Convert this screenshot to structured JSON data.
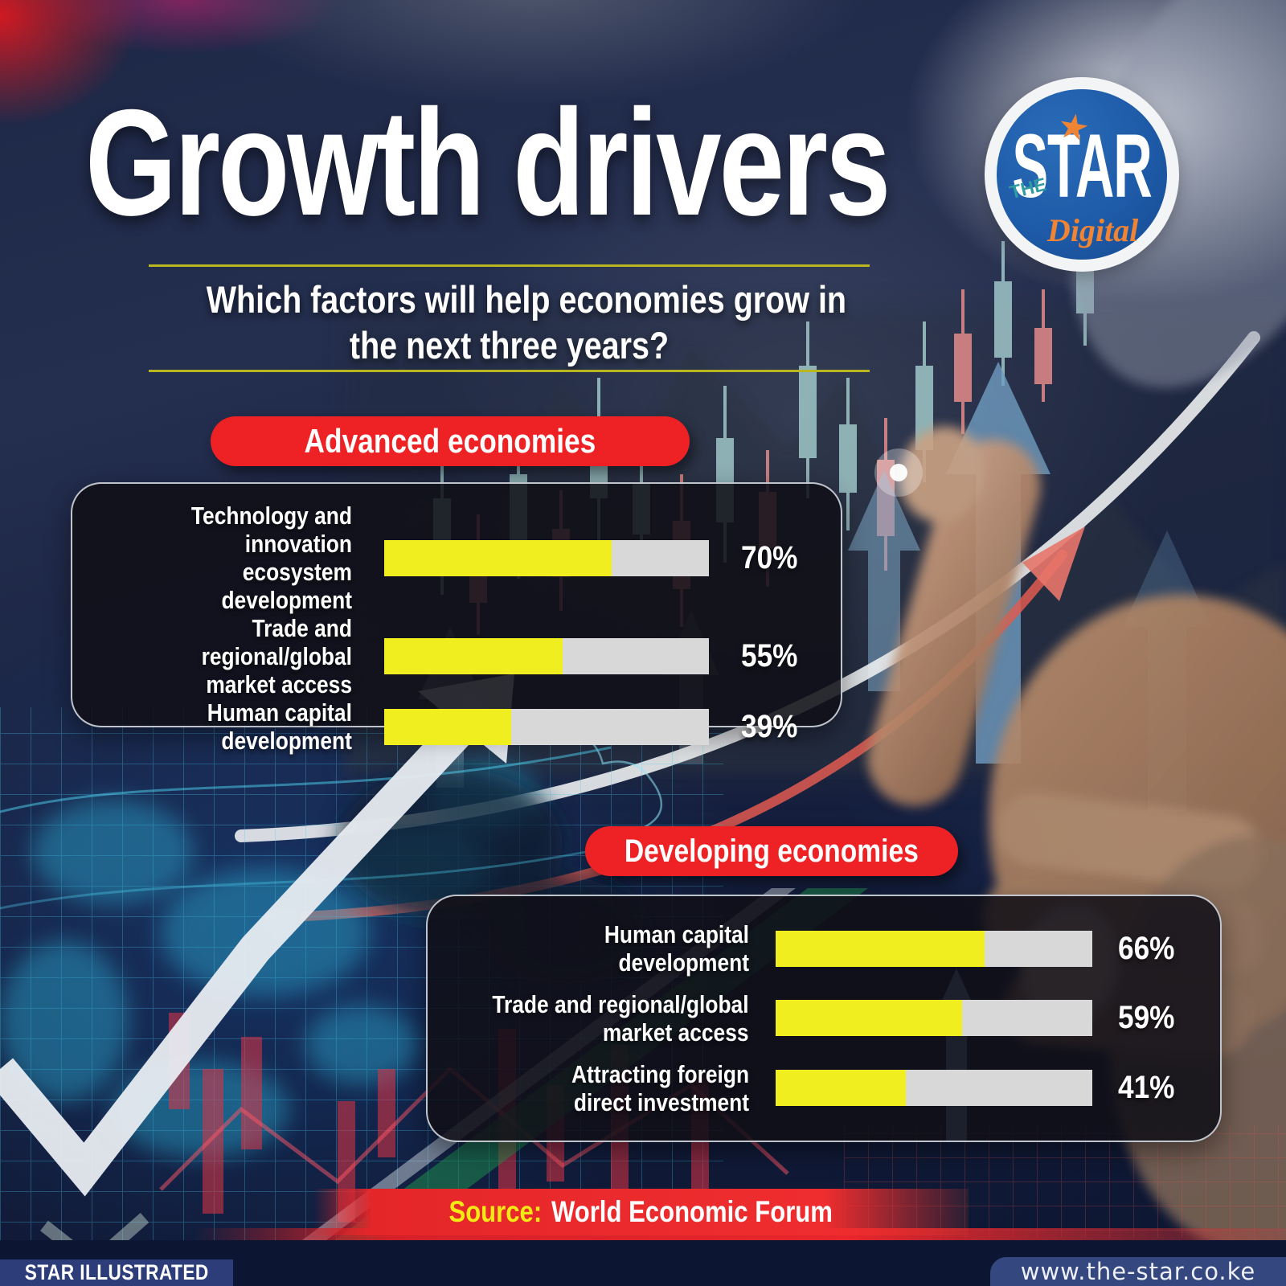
{
  "header": {
    "title": "Growth drivers",
    "subtitle_line1": "Which factors will help economies grow in",
    "subtitle_line2": "the next three years?",
    "logo": {
      "the": "THE",
      "star": "STAR",
      "star_glyph": "★",
      "digital": "Digital"
    }
  },
  "chart_data": [
    {
      "type": "bar",
      "title": "Advanced economies",
      "categories": [
        "Technology and innovation ecosystem development",
        "Trade and regional/global market access",
        "Human capital development"
      ],
      "categories_lines": [
        [
          "Technology and innovation",
          "ecosystem development"
        ],
        [
          "Trade and regional/global",
          "market access"
        ],
        [
          "Human capital",
          "development"
        ]
      ],
      "values": [
        70,
        55,
        39
      ],
      "unit": "%",
      "xlim": [
        0,
        100
      ],
      "bar_color": "#f0ee1f",
      "track_color": "#d8d8d8"
    },
    {
      "type": "bar",
      "title": "Developing economies",
      "categories": [
        "Human capital development",
        "Trade and regional/global market access",
        "Attracting foreign direct investment"
      ],
      "categories_lines": [
        [
          "Human capital development"
        ],
        [
          "Trade and regional/global",
          "market access"
        ],
        [
          "Attracting foreign",
          "direct investment"
        ]
      ],
      "values": [
        66,
        59,
        41
      ],
      "unit": "%",
      "xlim": [
        0,
        100
      ],
      "bar_color": "#f0ee1f",
      "track_color": "#d8d8d8"
    }
  ],
  "source": {
    "label": "Source:",
    "text": "World Economic Forum"
  },
  "footer": {
    "left": "STAR ILLUSTRATED",
    "right": "www.the-star.co.ke"
  },
  "colors": {
    "pill_red": "#ee2124",
    "bar_yellow": "#f0ee1f",
    "bar_track": "#d8d8d8",
    "rule_yellow": "#b9b61f",
    "source_red": "#e52629",
    "source_label_yellow": "#f3ea15",
    "footer_left_bg": "#2c3d7a",
    "footer_right_bg": "#35477f",
    "logo_blue": "#1d59a6",
    "logo_orange": "#ee8434",
    "logo_teal": "#2f9ba3"
  }
}
